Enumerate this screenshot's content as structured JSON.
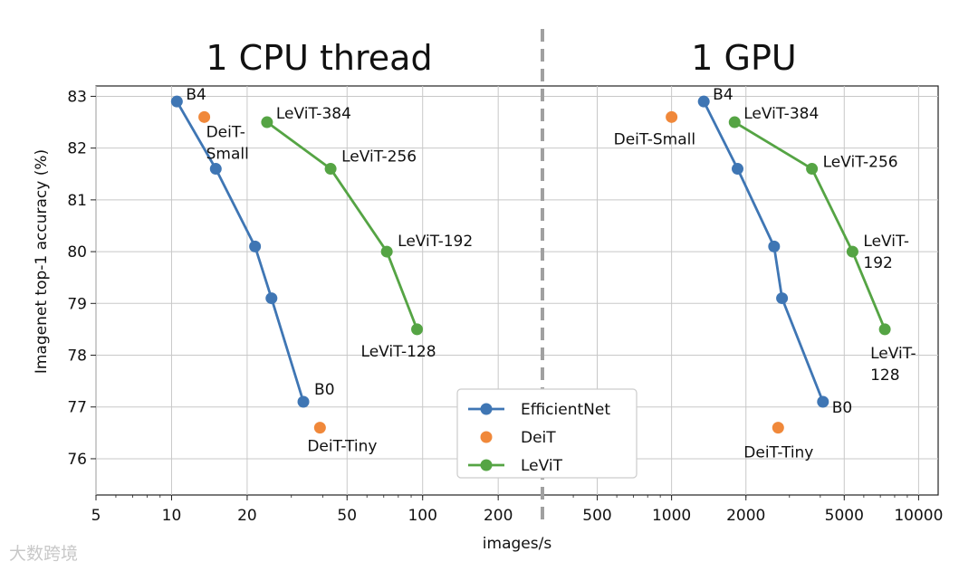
{
  "chart_data": {
    "type": "line",
    "xscale": "log",
    "xlabel": "images/s",
    "ylabel": "Imagenet top-1 accuracy (%)",
    "ylim": [
      75.3,
      83.2
    ],
    "yticks": [
      76,
      77,
      78,
      79,
      80,
      81,
      82,
      83
    ],
    "grid": true,
    "legend_position": "lower center",
    "legend": [
      "EfficientNet",
      "DeiT",
      "LeViT"
    ],
    "colors": {
      "EfficientNet": "#3f76b4",
      "DeiT": "#f0883a",
      "LeViT": "#55a444",
      "separator": "#a0a0a0"
    },
    "panels": [
      {
        "title": "1 CPU thread",
        "xlim": [
          5,
          300
        ],
        "xticks": [
          5,
          10,
          20,
          50,
          100,
          200
        ],
        "series": [
          {
            "name": "EfficientNet",
            "marker": "line",
            "points": [
              {
                "x": 10.5,
                "y": 82.9,
                "label": "B4"
              },
              {
                "x": 15,
                "y": 81.6,
                "label": ""
              },
              {
                "x": 21.5,
                "y": 80.1,
                "label": ""
              },
              {
                "x": 25,
                "y": 79.1,
                "label": ""
              },
              {
                "x": 33.5,
                "y": 77.1,
                "label": "B0"
              }
            ]
          },
          {
            "name": "DeiT",
            "marker": "scatter",
            "points": [
              {
                "x": 13.5,
                "y": 82.6,
                "label": "DeiT-\nSmall"
              },
              {
                "x": 39,
                "y": 76.6,
                "label": "DeiT-Tiny"
              }
            ]
          },
          {
            "name": "LeViT",
            "marker": "line",
            "points": [
              {
                "x": 24,
                "y": 82.5,
                "label": "LeViT-384"
              },
              {
                "x": 43,
                "y": 81.6,
                "label": "LeViT-256"
              },
              {
                "x": 72,
                "y": 80.0,
                "label": "LeViT-192"
              },
              {
                "x": 95,
                "y": 78.5,
                "label": "LeViT-128"
              }
            ]
          }
        ]
      },
      {
        "title": "1 GPU",
        "xlim": [
          300,
          12000
        ],
        "xticks": [
          500,
          1000,
          2000,
          5000,
          10000
        ],
        "series": [
          {
            "name": "EfficientNet",
            "marker": "line",
            "points": [
              {
                "x": 1350,
                "y": 82.9,
                "label": "B4"
              },
              {
                "x": 1850,
                "y": 81.6,
                "label": ""
              },
              {
                "x": 2600,
                "y": 80.1,
                "label": ""
              },
              {
                "x": 2800,
                "y": 79.1,
                "label": ""
              },
              {
                "x": 4100,
                "y": 77.1,
                "label": "B0"
              }
            ]
          },
          {
            "name": "DeiT",
            "marker": "scatter",
            "points": [
              {
                "x": 1000,
                "y": 82.6,
                "label": "DeiT-Small"
              },
              {
                "x": 2700,
                "y": 76.6,
                "label": "DeiT-Tiny"
              }
            ]
          },
          {
            "name": "LeViT",
            "marker": "line",
            "points": [
              {
                "x": 1800,
                "y": 82.5,
                "label": "LeViT-384"
              },
              {
                "x": 3700,
                "y": 81.6,
                "label": "LeViT-256"
              },
              {
                "x": 5400,
                "y": 80.0,
                "label": "LeViT-\n192"
              },
              {
                "x": 7300,
                "y": 78.5,
                "label": "LeViT-\n128"
              }
            ]
          }
        ]
      }
    ]
  },
  "watermark": "大数跨境"
}
